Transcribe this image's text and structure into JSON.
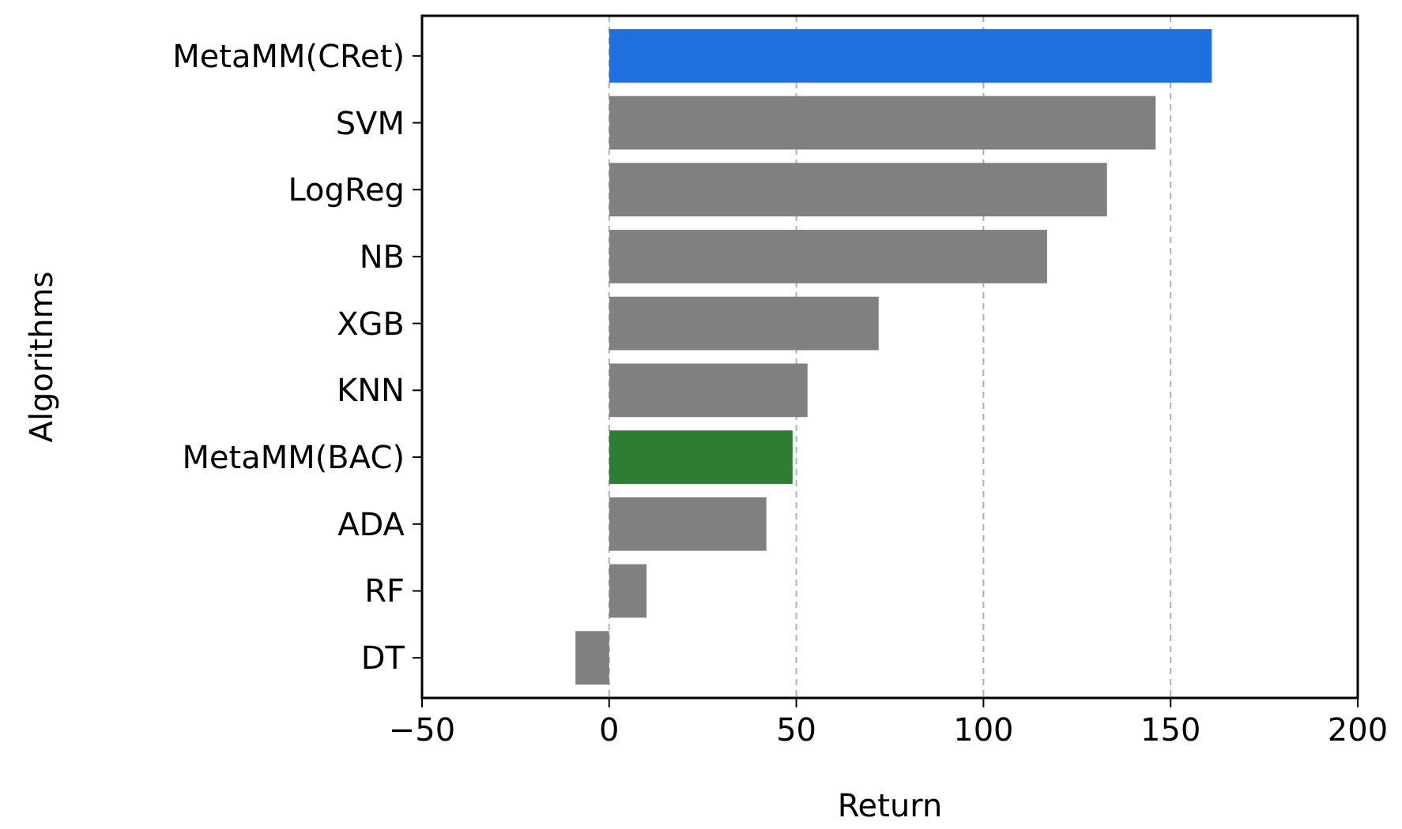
{
  "chart_data": {
    "type": "bar",
    "orientation": "horizontal",
    "xlabel": "Return",
    "ylabel": "Algorithms",
    "categories": [
      "MetaMM(CRet)",
      "SVM",
      "LogReg",
      "NB",
      "XGB",
      "KNN",
      "MetaMM(BAC)",
      "ADA",
      "RF",
      "DT"
    ],
    "values": [
      161,
      146,
      133,
      117,
      72,
      53,
      49,
      42,
      10,
      -9
    ],
    "colors": [
      "#1f6fde",
      "#808080",
      "#808080",
      "#808080",
      "#808080",
      "#808080",
      "#2e7d32",
      "#808080",
      "#808080",
      "#808080"
    ],
    "xlim": [
      -50,
      200
    ],
    "xticks": [
      -50,
      0,
      50,
      100,
      150,
      200
    ],
    "grid": "x"
  }
}
